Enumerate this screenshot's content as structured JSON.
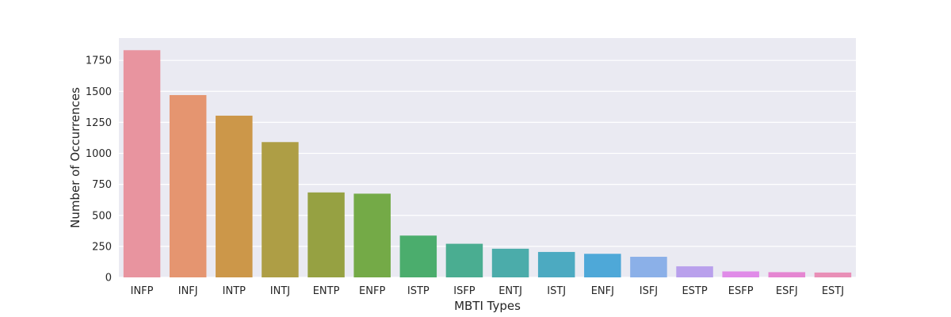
{
  "chart_data": {
    "type": "bar",
    "title": "",
    "xlabel": "MBTI Types",
    "ylabel": "Number of Occurrences",
    "categories": [
      "INFP",
      "INFJ",
      "INTP",
      "INTJ",
      "ENTP",
      "ENFP",
      "ISTP",
      "ISFP",
      "ENTJ",
      "ISTJ",
      "ENFJ",
      "ISFJ",
      "ESTP",
      "ESFP",
      "ESFJ",
      "ESTJ"
    ],
    "values": [
      1832,
      1470,
      1304,
      1091,
      685,
      675,
      337,
      271,
      231,
      205,
      190,
      166,
      89,
      48,
      42,
      39
    ],
    "ylim": [
      0,
      1930
    ],
    "yticks": [
      0,
      250,
      500,
      750,
      1000,
      1250,
      1500,
      1750
    ],
    "grid": true,
    "legend": "none",
    "colors": [
      "#e8949f",
      "#e59570",
      "#cc9749",
      "#ae9e45",
      "#96a142",
      "#74aa47",
      "#4bad6d",
      "#4aad91",
      "#4bacaa",
      "#4caac1",
      "#4ea8d8",
      "#8bb0e8",
      "#b9a0ec",
      "#e08be8",
      "#e586d2",
      "#e98fb7"
    ],
    "background": "#eaeaf2",
    "grid_color": "#ffffff"
  }
}
